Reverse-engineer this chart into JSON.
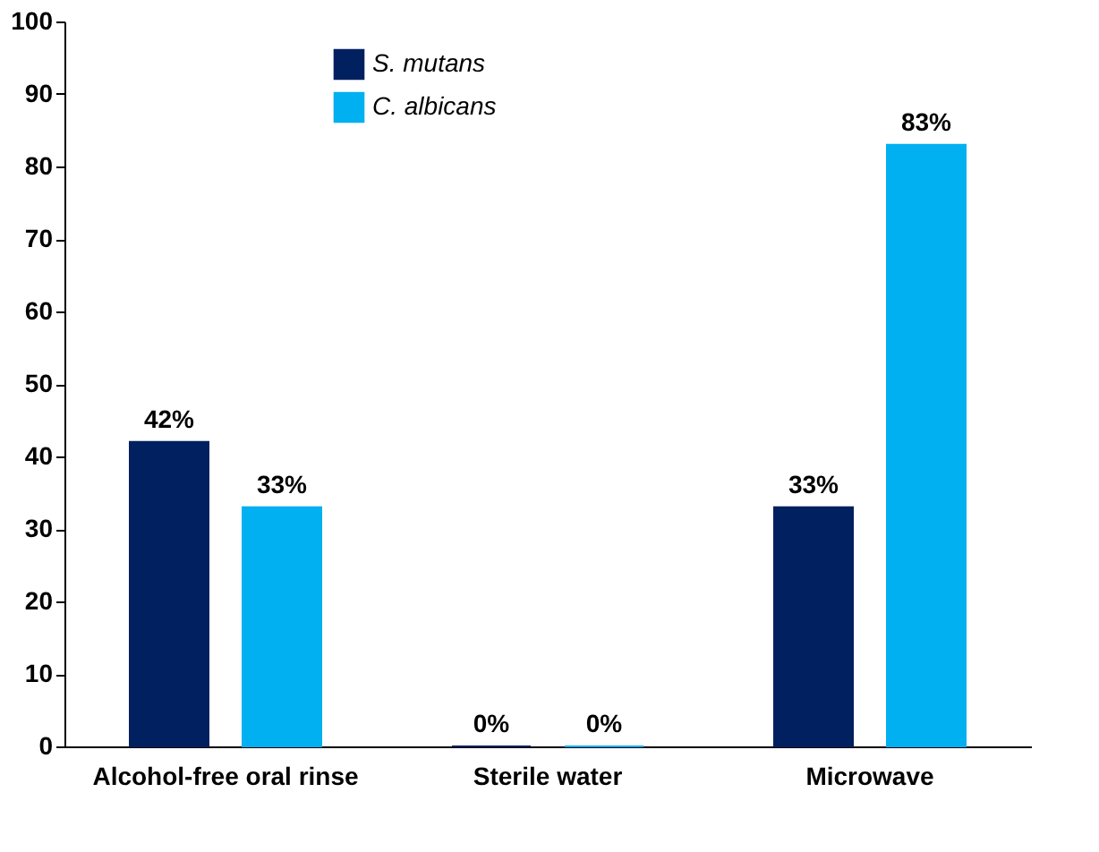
{
  "chart_data": {
    "type": "bar",
    "categories": [
      "Alcohol-free oral rinse",
      "Sterile water",
      "Microwave"
    ],
    "series": [
      {
        "name": "S. mutans",
        "color": "#002060",
        "values": [
          42,
          0,
          33
        ],
        "value_labels": [
          "42%",
          "0%",
          "33%"
        ]
      },
      {
        "name": "C. albicans",
        "color": "#00b0f0",
        "values": [
          33,
          0,
          83
        ],
        "value_labels": [
          "33%",
          "0%",
          "83%"
        ]
      }
    ],
    "ylim": [
      0,
      100
    ],
    "yticks": [
      0,
      10,
      20,
      30,
      40,
      50,
      60,
      70,
      80,
      90,
      100
    ],
    "grid": false,
    "legend": "top"
  }
}
